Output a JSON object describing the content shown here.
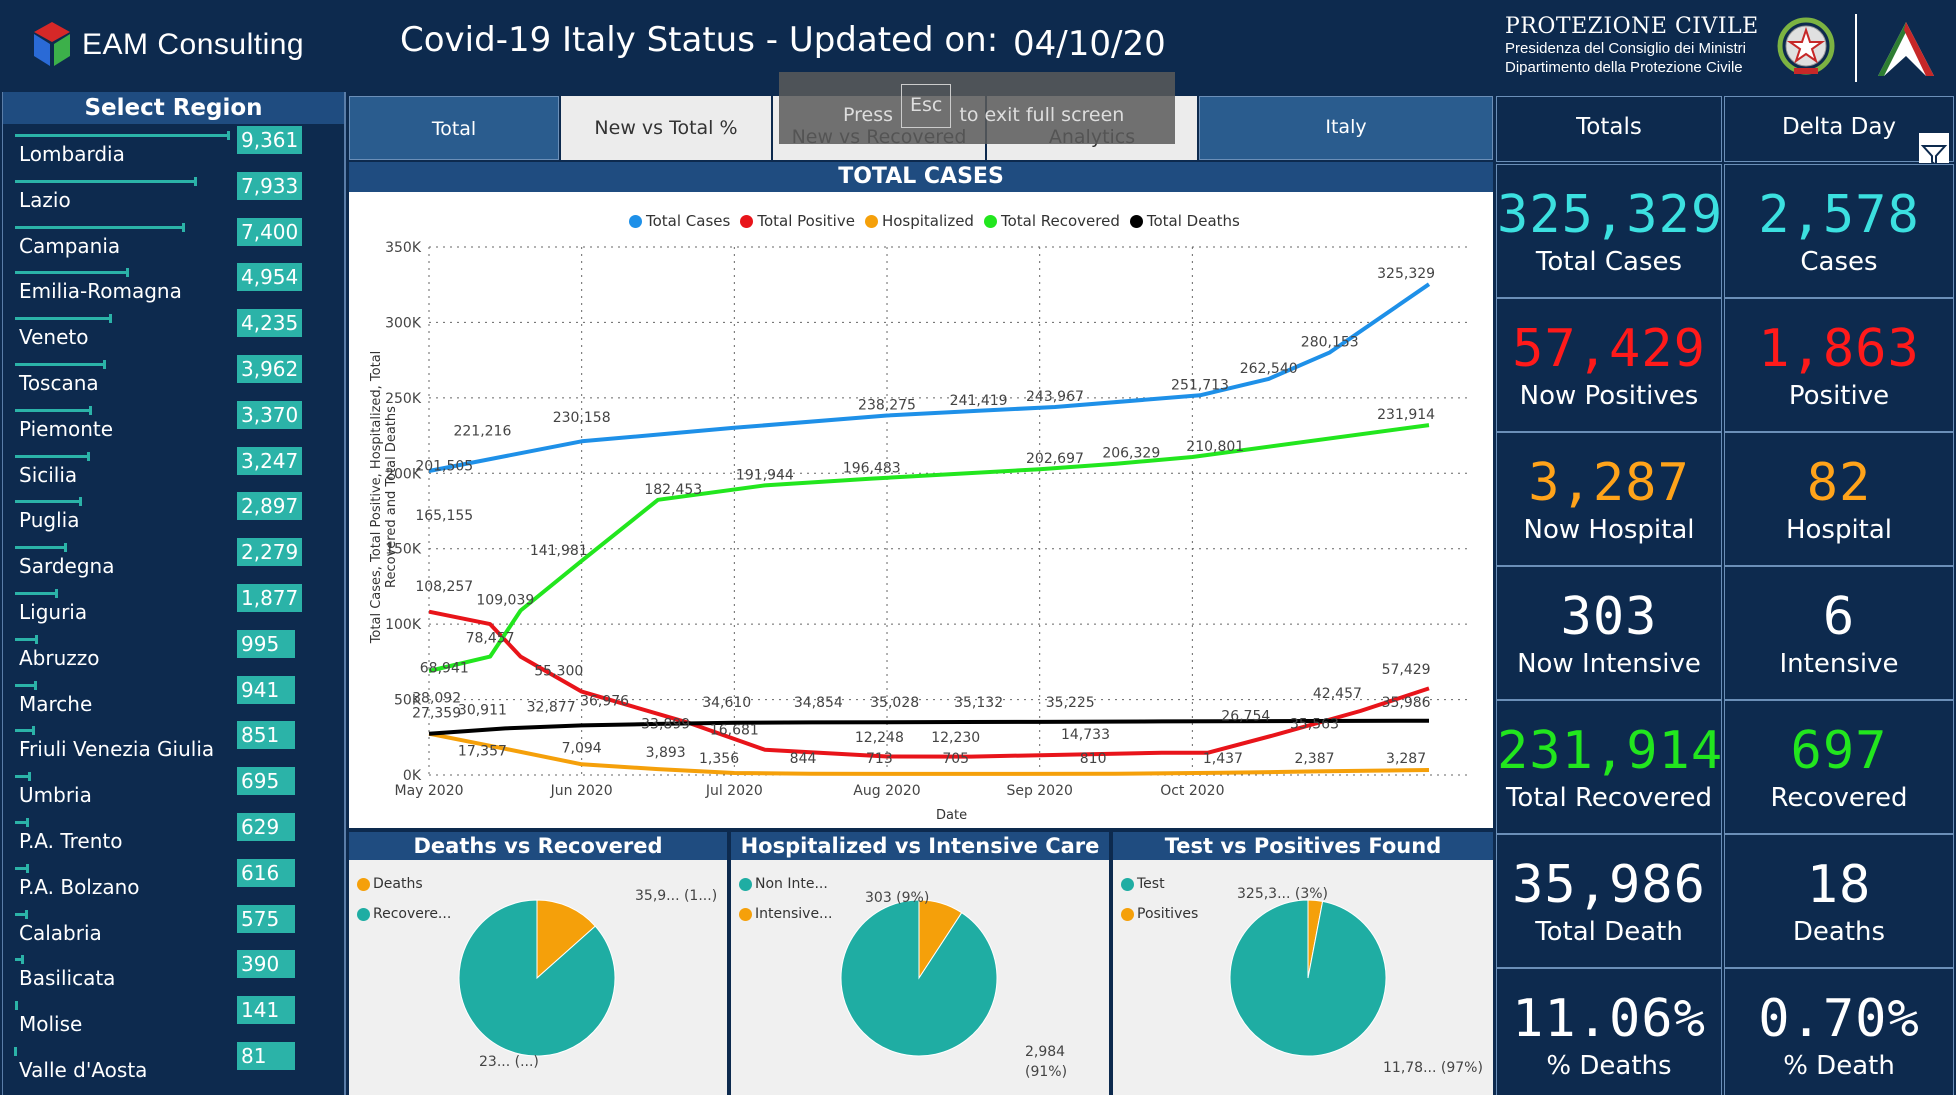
{
  "header": {
    "logo_text": "EAM Consulting",
    "title": "Covid-19 Italy Status - Updated on:",
    "date": "04/10/20",
    "pc_title": "PROTEZIONE CIVILE",
    "pc_line1": "Presidenza del Consiglio dei Ministri",
    "pc_line2": "Dipartimento della Protezione Civile"
  },
  "sidebar": {
    "title": "Select Region",
    "regions": [
      {
        "name": "Lombardia",
        "value": "9,361",
        "n": 9361
      },
      {
        "name": "Lazio",
        "value": "7,933",
        "n": 7933
      },
      {
        "name": "Campania",
        "value": "7,400",
        "n": 7400
      },
      {
        "name": "Emilia-Romagna",
        "value": "4,954",
        "n": 4954
      },
      {
        "name": "Veneto",
        "value": "4,235",
        "n": 4235
      },
      {
        "name": "Toscana",
        "value": "3,962",
        "n": 3962
      },
      {
        "name": "Piemonte",
        "value": "3,370",
        "n": 3370
      },
      {
        "name": "Sicilia",
        "value": "3,247",
        "n": 3247
      },
      {
        "name": "Puglia",
        "value": "2,897",
        "n": 2897
      },
      {
        "name": "Sardegna",
        "value": "2,279",
        "n": 2279
      },
      {
        "name": "Liguria",
        "value": "1,877",
        "n": 1877
      },
      {
        "name": "Abruzzo",
        "value": "995",
        "n": 995
      },
      {
        "name": "Marche",
        "value": "941",
        "n": 941
      },
      {
        "name": "Friuli Venezia Giulia",
        "value": "851",
        "n": 851
      },
      {
        "name": "Umbria",
        "value": "695",
        "n": 695
      },
      {
        "name": "P.A. Trento",
        "value": "629",
        "n": 629
      },
      {
        "name": "P.A. Bolzano",
        "value": "616",
        "n": 616
      },
      {
        "name": "Calabria",
        "value": "575",
        "n": 575
      },
      {
        "name": "Basilicata",
        "value": "390",
        "n": 390
      },
      {
        "name": "Molise",
        "value": "141",
        "n": 141
      },
      {
        "name": "Valle d'Aosta",
        "value": "81",
        "n": 81
      }
    ]
  },
  "tabs": {
    "total": "Total",
    "new_vs_total": "New vs Total %",
    "new_vs_recovered": "New vs Recovered",
    "analytics": "Analytics",
    "italy": "Italy"
  },
  "overlay": {
    "press": "Press",
    "key": "Esc",
    "rest": "to exit full screen"
  },
  "chart_data": {
    "type": "line",
    "title": "TOTAL CASES",
    "xlabel": "Date",
    "ylabel": "Total Cases, Total Positive, Hospitalized, Total Recovered and Total Deaths",
    "ylim": [
      0,
      350000
    ],
    "y_ticks": [
      "0K",
      "50K",
      "100K",
      "150K",
      "200K",
      "250K",
      "300K",
      "350K"
    ],
    "x_ticks": [
      "May 2020",
      "Jun 2020",
      "Jul 2020",
      "Aug 2020",
      "Sep 2020",
      "Oct 2020"
    ],
    "series": [
      {
        "name": "Total Cases",
        "color": "#1e90e8",
        "points": [
          [
            0,
            201505
          ],
          [
            1,
            221216
          ],
          [
            2,
            230158
          ],
          [
            3,
            238275
          ],
          [
            3.6,
            241419
          ],
          [
            4.1,
            243967
          ],
          [
            5.05,
            251713
          ],
          [
            5.5,
            262540
          ],
          [
            5.9,
            280153
          ],
          [
            6.55,
            325329
          ]
        ]
      },
      {
        "name": "Total Positive",
        "color": "#e8141a",
        "points": [
          [
            0,
            108257
          ],
          [
            0.4,
            100000
          ],
          [
            0.6,
            78457
          ],
          [
            1,
            55300
          ],
          [
            1.7,
            34610
          ],
          [
            2.2,
            16681
          ],
          [
            3,
            12248
          ],
          [
            3.55,
            12230
          ],
          [
            4.8,
            14733
          ],
          [
            5.1,
            14733
          ],
          [
            5.55,
            26754
          ],
          [
            6.1,
            42457
          ],
          [
            6.55,
            57429
          ]
        ]
      },
      {
        "name": "Hospitalized",
        "color": "#f5a00a",
        "points": [
          [
            0,
            27359
          ],
          [
            0.5,
            17357
          ],
          [
            1,
            7094
          ],
          [
            1.5,
            3893
          ],
          [
            2,
            1356
          ],
          [
            2.5,
            844
          ],
          [
            3,
            713
          ],
          [
            3.5,
            705
          ],
          [
            4.5,
            810
          ],
          [
            5.2,
            1437
          ],
          [
            5.8,
            2387
          ],
          [
            6.55,
            3287
          ]
        ]
      },
      {
        "name": "Total Recovered",
        "color": "#22e61e",
        "points": [
          [
            0,
            68941
          ],
          [
            0.4,
            78457
          ],
          [
            0.6,
            109039
          ],
          [
            1,
            141981
          ],
          [
            1.5,
            182453
          ],
          [
            2.2,
            191944
          ],
          [
            2.9,
            196483
          ],
          [
            4,
            202697
          ],
          [
            4.5,
            206329
          ],
          [
            5,
            210801
          ],
          [
            6.55,
            231914
          ]
        ]
      },
      {
        "name": "Total Deaths",
        "color": "#000000",
        "points": [
          [
            0,
            27359
          ],
          [
            0.5,
            30911
          ],
          [
            1,
            32877
          ],
          [
            1.5,
            33899
          ],
          [
            2,
            34610
          ],
          [
            2.5,
            34854
          ],
          [
            3,
            35028
          ],
          [
            3.5,
            35132
          ],
          [
            4,
            35225
          ],
          [
            4.8,
            35563
          ],
          [
            6.55,
            35986
          ]
        ]
      }
    ],
    "labels": [
      {
        "text": "325,329",
        "x": 6.4,
        "y": 325329
      },
      {
        "text": "280,153",
        "x": 5.9,
        "y": 280153
      },
      {
        "text": "262,540",
        "x": 5.5,
        "y": 262540
      },
      {
        "text": "251,713",
        "x": 5.05,
        "y": 251713
      },
      {
        "text": "243,967",
        "x": 4.1,
        "y": 243967
      },
      {
        "text": "241,419",
        "x": 3.6,
        "y": 241419
      },
      {
        "text": "238,275",
        "x": 3.0,
        "y": 238275
      },
      {
        "text": "230,158",
        "x": 1.0,
        "y": 230158
      },
      {
        "text": "221,216",
        "x": 0.35,
        "y": 221216
      },
      {
        "text": "201,505",
        "x": 0.1,
        "y": 198000
      },
      {
        "text": "165,155",
        "x": 0.1,
        "y": 165155
      },
      {
        "text": "231,914",
        "x": 6.4,
        "y": 231914
      },
      {
        "text": "210,801",
        "x": 5.15,
        "y": 210801
      },
      {
        "text": "206,329",
        "x": 4.6,
        "y": 206329
      },
      {
        "text": "202,697",
        "x": 4.1,
        "y": 202697
      },
      {
        "text": "196,483",
        "x": 2.9,
        "y": 196483
      },
      {
        "text": "191,944",
        "x": 2.2,
        "y": 191944
      },
      {
        "text": "182,453",
        "x": 1.6,
        "y": 182453
      },
      {
        "text": "141,981",
        "x": 0.85,
        "y": 141981
      },
      {
        "text": "109,039",
        "x": 0.5,
        "y": 109039
      },
      {
        "text": "108,257",
        "x": 0.1,
        "y": 118000
      },
      {
        "text": "78,457",
        "x": 0.4,
        "y": 84000
      },
      {
        "text": "68,941",
        "x": 0.1,
        "y": 64000
      },
      {
        "text": "55,300",
        "x": 0.85,
        "y": 62000
      },
      {
        "text": "38,092",
        "x": 0.05,
        "y": 44000
      },
      {
        "text": "27,359",
        "x": 0.05,
        "y": 34000
      },
      {
        "text": "30,911",
        "x": 0.35,
        "y": 36000
      },
      {
        "text": "32,877",
        "x": 0.8,
        "y": 38000
      },
      {
        "text": "36,976",
        "x": 1.15,
        "y": 42000
      },
      {
        "text": "33,899",
        "x": 1.55,
        "y": 27000
      },
      {
        "text": "34,610",
        "x": 1.95,
        "y": 41000
      },
      {
        "text": "34,854",
        "x": 2.55,
        "y": 41000
      },
      {
        "text": "35,028",
        "x": 3.05,
        "y": 41000
      },
      {
        "text": "35,132",
        "x": 3.6,
        "y": 41000
      },
      {
        "text": "35,225",
        "x": 4.2,
        "y": 41000
      },
      {
        "text": "26,754",
        "x": 5.35,
        "y": 32000
      },
      {
        "text": "35,563",
        "x": 5.8,
        "y": 27000
      },
      {
        "text": "42,457",
        "x": 5.95,
        "y": 47000
      },
      {
        "text": "57,429",
        "x": 6.4,
        "y": 63000
      },
      {
        "text": "35,986",
        "x": 6.4,
        "y": 41000
      },
      {
        "text": "17,357",
        "x": 0.35,
        "y": 9000
      },
      {
        "text": "7,094",
        "x": 1.0,
        "y": 11000
      },
      {
        "text": "3,893",
        "x": 1.55,
        "y": 8000
      },
      {
        "text": "16,681",
        "x": 2.0,
        "y": 23000
      },
      {
        "text": "1,356",
        "x": 1.9,
        "y": 4000
      },
      {
        "text": "844",
        "x": 2.45,
        "y": 4000
      },
      {
        "text": "12,248",
        "x": 2.95,
        "y": 18000
      },
      {
        "text": "713",
        "x": 2.95,
        "y": 4000
      },
      {
        "text": "12,230",
        "x": 3.45,
        "y": 18000
      },
      {
        "text": "705",
        "x": 3.45,
        "y": 4000
      },
      {
        "text": "14,733",
        "x": 4.3,
        "y": 20000
      },
      {
        "text": "810",
        "x": 4.35,
        "y": 4000
      },
      {
        "text": "1,437",
        "x": 5.2,
        "y": 4000
      },
      {
        "text": "2,387",
        "x": 5.8,
        "y": 4000
      },
      {
        "text": "3,287",
        "x": 6.4,
        "y": 4000
      }
    ]
  },
  "pies": [
    {
      "title": "Deaths vs Recovered",
      "legend": [
        {
          "label": "Deaths",
          "color": "#f5a00a"
        },
        {
          "label": "Recovere...",
          "color": "#1fada3"
        }
      ],
      "slices": [
        {
          "label": "Deaths",
          "value": 35986,
          "color": "#f5a00a"
        },
        {
          "label": "Recovered",
          "value": 231914,
          "color": "#1fada3"
        }
      ],
      "label_top": "35,9... (1...)",
      "label_bottom": "23... (...)"
    },
    {
      "title": "Hospitalized vs Intensive Care",
      "legend": [
        {
          "label": "Non Inte...",
          "color": "#1fada3"
        },
        {
          "label": "Intensive...",
          "color": "#f5a00a"
        }
      ],
      "slices": [
        {
          "label": "Intensive",
          "value": 303,
          "color": "#f5a00a"
        },
        {
          "label": "Non Intensive",
          "value": 2984,
          "color": "#1fada3"
        }
      ],
      "label_top": "303 (9%)",
      "label_bottom_1": "2,984",
      "label_bottom_2": "(91%)"
    },
    {
      "title": "Test vs Positives Found",
      "legend": [
        {
          "label": "Test",
          "color": "#1fada3"
        },
        {
          "label": "Positives",
          "color": "#f5a00a"
        }
      ],
      "slices": [
        {
          "label": "Positives",
          "value": 3,
          "color": "#f5a00a"
        },
        {
          "label": "Test",
          "value": 97,
          "color": "#1fada3"
        }
      ],
      "label_top": "325,3... (3%)",
      "label_bottom": "11,78... (97%)"
    }
  ],
  "kpi": {
    "head_totals": "Totals",
    "head_delta": "Delta Day",
    "rows": [
      {
        "total": "325,329",
        "total_label": "Total Cases",
        "delta": "2,578",
        "delta_label": "Cases",
        "color": "#3ce0e0"
      },
      {
        "total": "57,429",
        "total_label": "Now Positives",
        "delta": "1,863",
        "delta_label": "Positive",
        "color": "#ff1a1a"
      },
      {
        "total": "3,287",
        "total_label": "Now Hospital",
        "delta": "82",
        "delta_label": "Hospital",
        "color": "#ffa31a"
      },
      {
        "total": "303",
        "total_label": "Now Intensive",
        "delta": "6",
        "delta_label": "Intensive",
        "color": "#ffffff"
      },
      {
        "total": "231,914",
        "total_label": "Total Recovered",
        "delta": "697",
        "delta_label": "Recovered",
        "color": "#22e61e"
      },
      {
        "total": "35,986",
        "total_label": "Total Death",
        "delta": "18",
        "delta_label": "Deaths",
        "color": "#ffffff"
      },
      {
        "total": "11.06%",
        "total_label": "% Deaths",
        "delta": "0.70%",
        "delta_label": "% Death",
        "color": "#ffffff"
      }
    ]
  }
}
